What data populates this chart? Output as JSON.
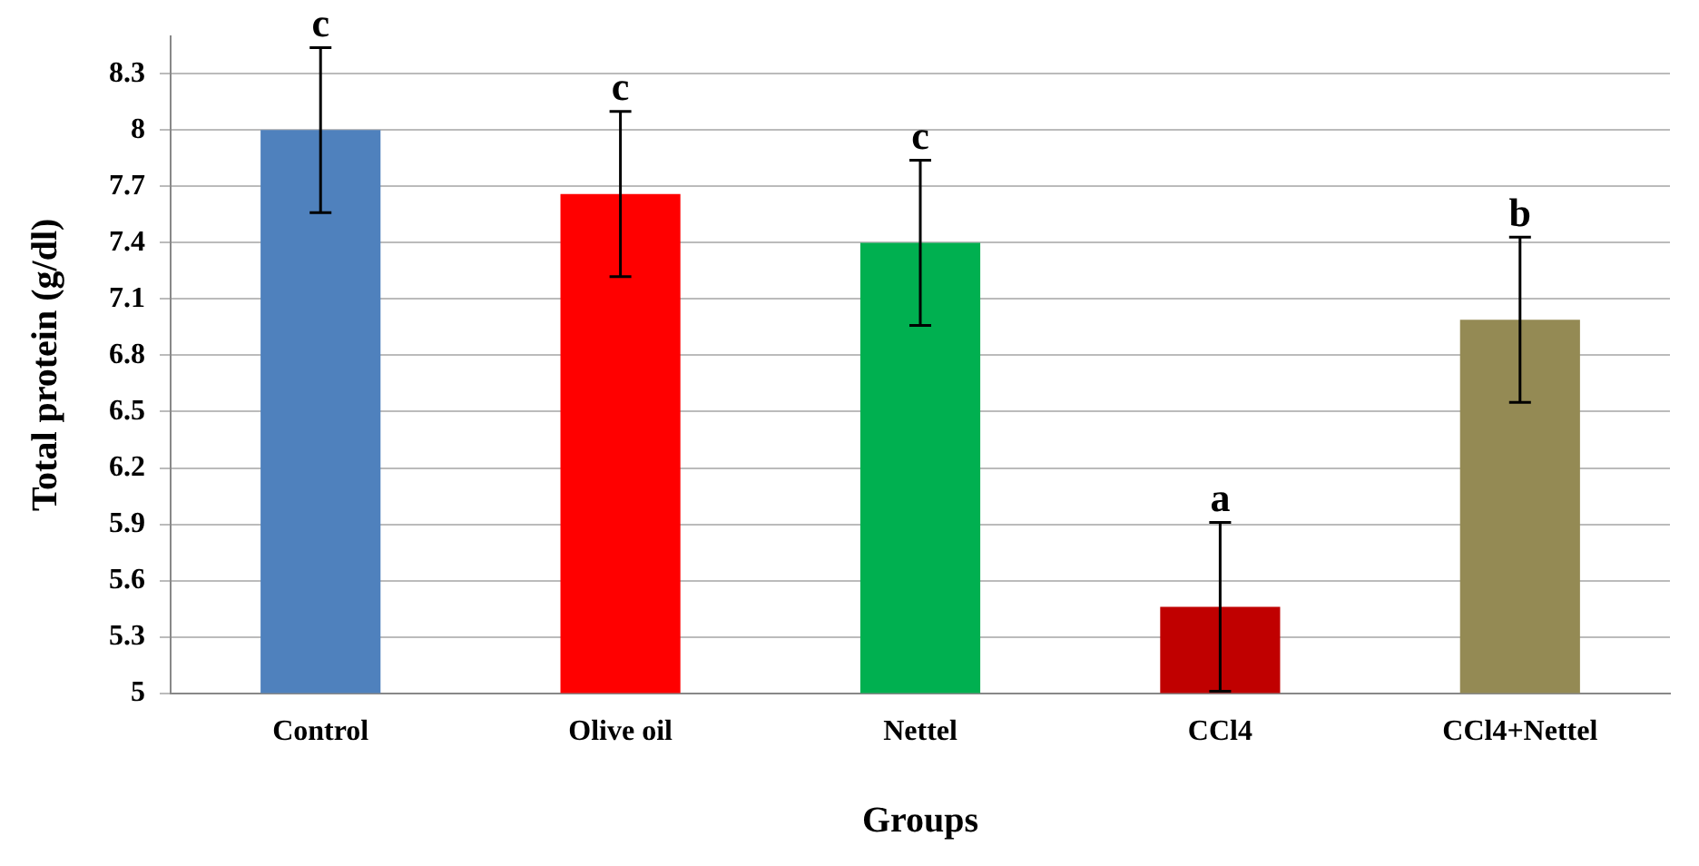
{
  "chart_data": {
    "type": "bar",
    "xlabel": "Groups",
    "ylabel": "Total protein (g/dl)",
    "categories": [
      "Control",
      "Olive oil",
      "Nettel",
      "CCl4",
      "CCl4+Nettel"
    ],
    "values": [
      8.0,
      7.66,
      7.4,
      5.46,
      6.99
    ],
    "colors": [
      "#4f81bd",
      "#ff0000",
      "#00b050",
      "#c00000",
      "#948a54"
    ],
    "errors": [
      0.44,
      0.44,
      0.44,
      0.45,
      0.44
    ],
    "ylim": [
      5,
      8.5
    ],
    "yticks": [
      5,
      5.3,
      5.6,
      5.9,
      6.2,
      6.5,
      6.8,
      7.1,
      7.4,
      7.7,
      8,
      8.3
    ],
    "grid": "y",
    "annotations": [
      {
        "text": "c",
        "x": "Control",
        "y": 8.44
      },
      {
        "text": "c",
        "x": "Olive oil",
        "y": 8.1
      },
      {
        "text": "c",
        "x": "Nettel",
        "y": 7.84
      },
      {
        "text": "a",
        "x": "CCl4",
        "y": 5.91
      },
      {
        "text": "b",
        "x": "CCl4+Nettel",
        "y": 7.43
      }
    ]
  }
}
